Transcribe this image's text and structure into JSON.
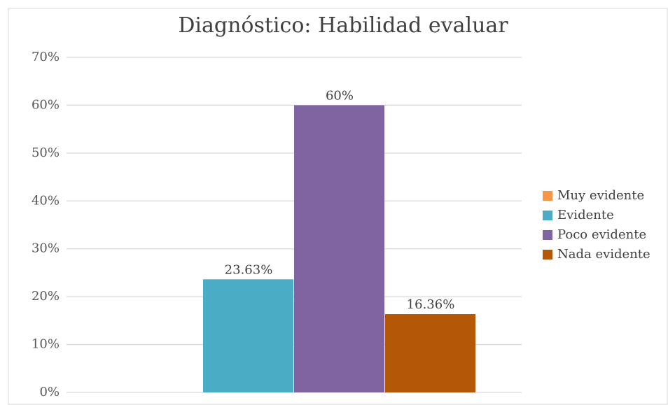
{
  "chart_data": {
    "type": "bar",
    "title": "Diagnóstico: Habilidad evaluar",
    "categories": [
      null
    ],
    "series": [
      {
        "name": "Muy evidente",
        "color": "#f79646",
        "values": [
          null
        ],
        "value_labels": [
          null
        ]
      },
      {
        "name": "Evidente",
        "color": "#4bacc6",
        "values": [
          23.63
        ],
        "value_labels": [
          "23.63%"
        ]
      },
      {
        "name": "Poco evidente",
        "color": "#8064a2",
        "values": [
          60
        ],
        "value_labels": [
          "60%"
        ]
      },
      {
        "name": "Nada evidente",
        "color": "#b45706",
        "values": [
          16.36
        ],
        "value_labels": [
          "16.36%"
        ]
      }
    ],
    "ylim": [
      0,
      70
    ],
    "yticks": [
      {
        "value": 0,
        "label": "0%"
      },
      {
        "value": 10,
        "label": "10%"
      },
      {
        "value": 20,
        "label": "20%"
      },
      {
        "value": 30,
        "label": "30%"
      },
      {
        "value": 40,
        "label": "40%"
      },
      {
        "value": 50,
        "label": "50%"
      },
      {
        "value": 60,
        "label": "60%"
      },
      {
        "value": 70,
        "label": "70%"
      }
    ],
    "grid": true,
    "legend": "right"
  }
}
